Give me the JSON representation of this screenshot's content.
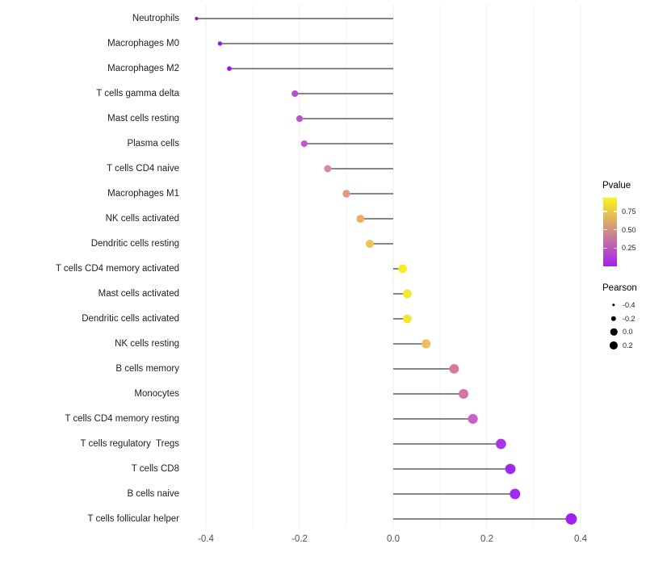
{
  "chart_data": {
    "type": "scatter",
    "style": "lollipop (dot + stem from zero)",
    "title": "",
    "xlabel": "",
    "ylabel": "",
    "xlim": [
      -0.465,
      0.435
    ],
    "x_ticks": [
      {
        "label": "-0.4",
        "value": -0.4
      },
      {
        "label": "-0.2",
        "value": -0.2
      },
      {
        "label": "0.0",
        "value": 0.0
      },
      {
        "label": "0.2",
        "value": 0.2
      },
      {
        "label": "0.4",
        "value": 0.4
      }
    ],
    "x_minor_ticks": [
      -0.3,
      -0.1,
      0.1,
      0.3
    ],
    "grid": "vertical-only",
    "legend_position": "right",
    "rows": [
      {
        "label": "Neutrophils",
        "pearson": -0.42,
        "pvalue": 0.05,
        "color": "#8912D4"
      },
      {
        "label": "Macrophages M0",
        "pearson": -0.37,
        "pvalue": 0.1,
        "color": "#9518E0"
      },
      {
        "label": "Macrophages M2",
        "pearson": -0.35,
        "pvalue": 0.11,
        "color": "#9719E1"
      },
      {
        "label": "T cells gamma delta",
        "pearson": -0.21,
        "pvalue": 0.3,
        "color": "#BA4ED2"
      },
      {
        "label": "Mast cells resting",
        "pearson": -0.2,
        "pvalue": 0.31,
        "color": "#BC50D2"
      },
      {
        "label": "Plasma cells",
        "pearson": -0.19,
        "pvalue": 0.34,
        "color": "#C159CE"
      },
      {
        "label": "T cells CD4 naive",
        "pearson": -0.14,
        "pvalue": 0.52,
        "color": "#D986A0"
      },
      {
        "label": "Macrophages M1",
        "pearson": -0.1,
        "pvalue": 0.6,
        "color": "#E59A7F"
      },
      {
        "label": "NK cells activated",
        "pearson": -0.07,
        "pvalue": 0.7,
        "color": "#EAAD62"
      },
      {
        "label": "Dendritic cells resting",
        "pearson": -0.05,
        "pvalue": 0.76,
        "color": "#EEC153"
      },
      {
        "label": "T cells CD4 memory activated",
        "pearson": 0.02,
        "pvalue": 0.9,
        "color": "#F8EB25"
      },
      {
        "label": "Mast cells activated",
        "pearson": 0.03,
        "pvalue": 0.88,
        "color": "#F5E72E"
      },
      {
        "label": "Dendritic cells activated",
        "pearson": 0.03,
        "pvalue": 0.87,
        "color": "#F4E534"
      },
      {
        "label": "NK cells resting",
        "pearson": 0.07,
        "pvalue": 0.72,
        "color": "#F0BE62"
      },
      {
        "label": "B cells memory",
        "pearson": 0.13,
        "pvalue": 0.48,
        "color": "#D8799C"
      },
      {
        "label": "Monocytes",
        "pearson": 0.15,
        "pvalue": 0.45,
        "color": "#D773A8"
      },
      {
        "label": "T cells CD4 memory resting",
        "pearson": 0.17,
        "pvalue": 0.36,
        "color": "#C95FC8"
      },
      {
        "label": "T cells regulatory  Tregs",
        "pearson": 0.23,
        "pvalue": 0.14,
        "color": "#AA35E8"
      },
      {
        "label": "T cells CD8",
        "pearson": 0.25,
        "pvalue": 0.09,
        "color": "#A027EE"
      },
      {
        "label": "B cells naive",
        "pearson": 0.26,
        "pvalue": 0.09,
        "color": "#A328F0"
      },
      {
        "label": "T cells follicular helper",
        "pearson": 0.38,
        "pvalue": 0.06,
        "color": "#A01FF2"
      }
    ],
    "legend": {
      "pvalue": {
        "title": "Pvalue",
        "high_color": "#FAF51F",
        "low_color": "#A41FF0",
        "range": [
          0.0,
          0.94
        ],
        "ticks": [
          {
            "label": "0.75",
            "value": 0.75
          },
          {
            "label": "0.50",
            "value": 0.5
          },
          {
            "label": "0.25",
            "value": 0.25
          }
        ]
      },
      "pearson": {
        "title": "Pearson",
        "keys": [
          {
            "label": "-0.4",
            "value": -0.4
          },
          {
            "label": "-0.2",
            "value": -0.2
          },
          {
            "label": "0.0",
            "value": 0.0
          },
          {
            "label": "0.2",
            "value": 0.2
          }
        ]
      }
    },
    "colors": {
      "stem": "#404040",
      "grid_major": "#ECECEC",
      "grid_minor": "#F4F4F4",
      "background": "#FFFFFF"
    }
  }
}
